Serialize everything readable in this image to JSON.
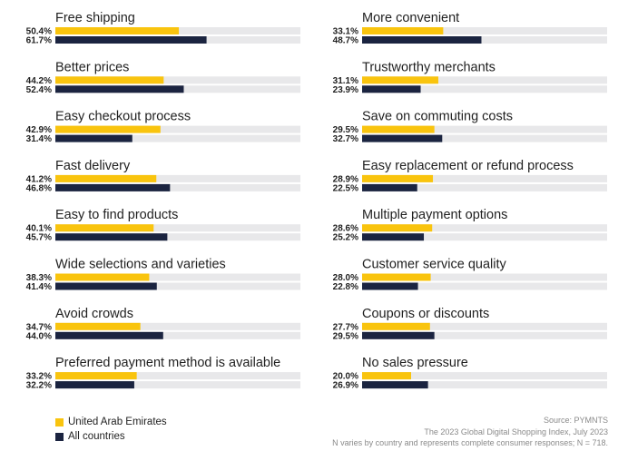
{
  "chart_data": {
    "type": "bar",
    "orientation": "horizontal",
    "xlim": [
      0,
      100
    ],
    "colors": {
      "uae": "#f9c40e",
      "all": "#1b2440",
      "track": "#e8e8ea"
    },
    "series": [
      {
        "name": "United Arab Emirates",
        "key": "uae"
      },
      {
        "name": "All countries",
        "key": "all"
      }
    ],
    "columns": [
      [
        {
          "category": "Free shipping",
          "uae": 50.4,
          "all": 61.7,
          "uae_label": "50.4%",
          "all_label": "61.7%"
        },
        {
          "category": "Better prices",
          "uae": 44.2,
          "all": 52.4,
          "uae_label": "44.2%",
          "all_label": "52.4%"
        },
        {
          "category": "Easy checkout process",
          "uae": 42.9,
          "all": 31.4,
          "uae_label": "42.9%",
          "all_label": "31.4%"
        },
        {
          "category": "Fast delivery",
          "uae": 41.2,
          "all": 46.8,
          "uae_label": "41.2%",
          "all_label": "46.8%"
        },
        {
          "category": "Easy to find products",
          "uae": 40.1,
          "all": 45.7,
          "uae_label": "40.1%",
          "all_label": "45.7%"
        },
        {
          "category": "Wide selections and varieties",
          "uae": 38.3,
          "all": 41.4,
          "uae_label": "38.3%",
          "all_label": "41.4%"
        },
        {
          "category": "Avoid crowds",
          "uae": 34.7,
          "all": 44.0,
          "uae_label": "34.7%",
          "all_label": "44.0%"
        },
        {
          "category": "Preferred payment method is available",
          "uae": 33.2,
          "all": 32.2,
          "uae_label": "33.2%",
          "all_label": "32.2%"
        }
      ],
      [
        {
          "category": "More convenient",
          "uae": 33.1,
          "all": 48.7,
          "uae_label": "33.1%",
          "all_label": "48.7%"
        },
        {
          "category": "Trustworthy merchants",
          "uae": 31.1,
          "all": 23.9,
          "uae_label": "31.1%",
          "all_label": "23.9%"
        },
        {
          "category": "Save on commuting costs",
          "uae": 29.5,
          "all": 32.7,
          "uae_label": "29.5%",
          "all_label": "32.7%"
        },
        {
          "category": "Easy replacement or refund process",
          "uae": 28.9,
          "all": 22.5,
          "uae_label": "28.9%",
          "all_label": "22.5%"
        },
        {
          "category": "Multiple payment options",
          "uae": 28.6,
          "all": 25.2,
          "uae_label": "28.6%",
          "all_label": "25.2%"
        },
        {
          "category": "Customer service quality",
          "uae": 28.0,
          "all": 22.8,
          "uae_label": "28.0%",
          "all_label": "22.8%"
        },
        {
          "category": "Coupons or discounts",
          "uae": 27.7,
          "all": 29.5,
          "uae_label": "27.7%",
          "all_label": "29.5%"
        },
        {
          "category": "No sales pressure",
          "uae": 20.0,
          "all": 26.9,
          "uae_label": "20.0%",
          "all_label": "26.9%"
        }
      ]
    ],
    "legend": {
      "uae_label": "United Arab Emirates",
      "all_label": "All countries"
    },
    "notes": {
      "source": "Source: PYMNTS",
      "study": "The 2023 Global Digital Shopping Index, July 2023",
      "sample": "N varies by country and represents complete consumer responses; N = 718."
    }
  }
}
